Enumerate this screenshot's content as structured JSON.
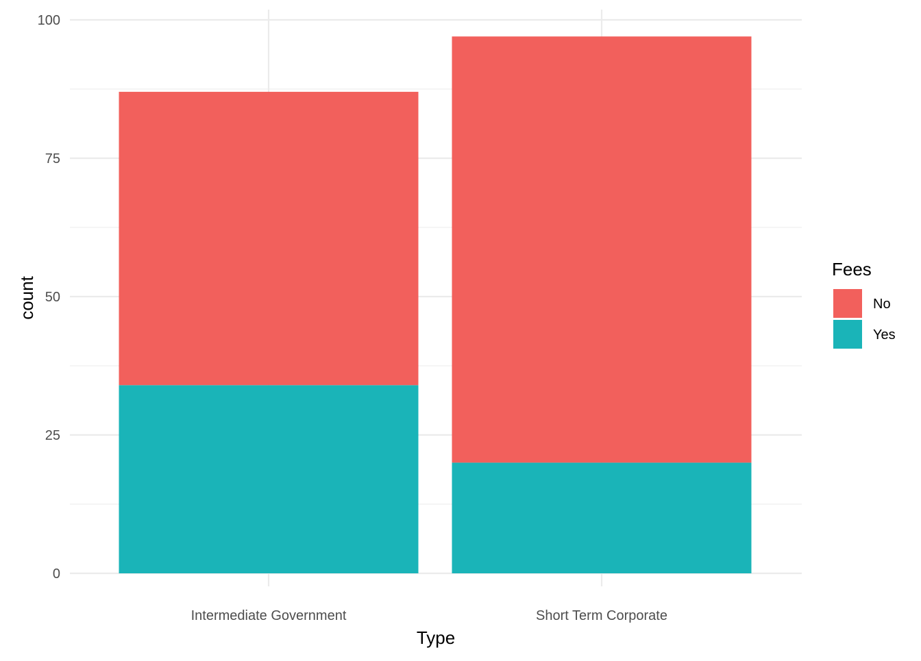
{
  "chart_data": {
    "type": "bar",
    "stacked": true,
    "categories": [
      "Intermediate Government",
      "Short Term Corporate"
    ],
    "series": [
      {
        "name": "No",
        "values": [
          53,
          77
        ],
        "color": "#F2605C"
      },
      {
        "name": "Yes",
        "values": [
          34,
          20
        ],
        "color": "#1AB4B8"
      }
    ],
    "xlabel": "Type",
    "ylabel": "count",
    "ylim": [
      0,
      100
    ],
    "yticks": [
      0,
      25,
      50,
      75,
      100
    ],
    "grid": true,
    "legend": {
      "title": "Fees",
      "placement": "right",
      "items": [
        {
          "label": "No",
          "color": "#F2605C"
        },
        {
          "label": "Yes",
          "color": "#1AB4B8"
        }
      ]
    }
  }
}
